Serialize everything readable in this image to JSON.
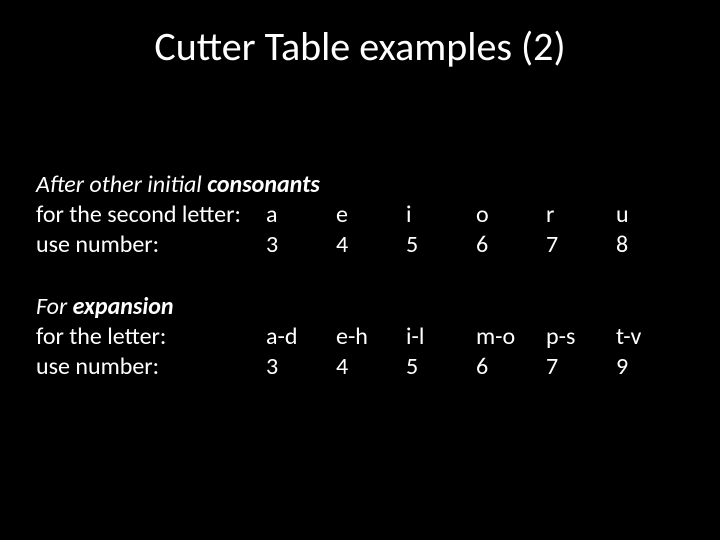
{
  "title": "Cutter Table examples (2)",
  "section1": {
    "head_italic": "After other initial ",
    "head_bold": "consonants",
    "row_letter_label": "for the second letter:",
    "row_number_label": "use number:",
    "cols": {
      "c0": {
        "letter": "a",
        "number": "3"
      },
      "c1": {
        "letter": "e",
        "number": "4"
      },
      "c2": {
        "letter": "i",
        "number": "5"
      },
      "c3": {
        "letter": "o",
        "number": "6"
      },
      "c4": {
        "letter": "r",
        "number": "7"
      },
      "c5": {
        "letter": "u",
        "number": "8"
      }
    }
  },
  "section2": {
    "head_italic": "For ",
    "head_bold": "expansion",
    "row_letter_label": "for the letter:",
    "row_number_label": "use number:",
    "cols": {
      "c0": {
        "letter": "a-d",
        "number": "3"
      },
      "c1": {
        "letter": "e-h",
        "number": "4"
      },
      "c2": {
        "letter": "i-l",
        "number": "5"
      },
      "c3": {
        "letter": "m-o",
        "number": "6"
      },
      "c4": {
        "letter": "p-s",
        "number": "7"
      },
      "c5": {
        "letter": "t-v",
        "number": "9"
      }
    }
  },
  "style": {
    "background": "#000000",
    "text_color": "#ffffff",
    "title_fontsize": 40,
    "body_fontsize": 24,
    "font_family": "Calibri"
  }
}
